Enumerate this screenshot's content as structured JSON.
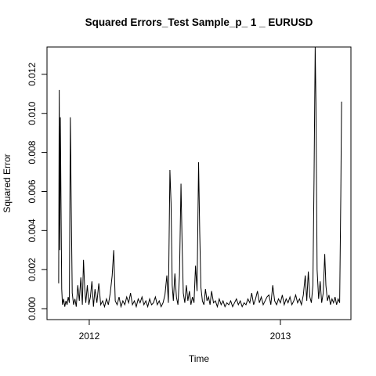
{
  "chart_data": {
    "type": "line",
    "title": "Squared Errors_Test Sample_p_ 1 _ EURUSD",
    "x_label": "Time",
    "y_label": "Squared Error",
    "color": "#000000",
    "xlim": [
      2011.779,
      2013.369
    ],
    "xticks": [
      2012,
      2013
    ],
    "ylim": [
      -0.00056,
      0.0134
    ],
    "yticks": [
      {
        "value": 0,
        "label": "0.000"
      },
      {
        "value": 0.002,
        "label": "0.002"
      },
      {
        "value": 0.004,
        "label": "0.004"
      },
      {
        "value": 0.006,
        "label": "0.006"
      },
      {
        "value": 0.008,
        "label": "0.008"
      },
      {
        "value": 0.01,
        "label": "0.010"
      },
      {
        "value": 0.012,
        "label": "0.012"
      }
    ],
    "x": [
      2011.84,
      2011.843,
      2011.846,
      2011.849,
      2011.852,
      2011.856,
      2011.86,
      2011.866,
      2011.872,
      2011.878,
      2011.884,
      2011.89,
      2011.896,
      2011.901,
      2011.906,
      2011.911,
      2011.918,
      2011.925,
      2011.932,
      2011.94,
      2011.948,
      2011.956,
      2011.964,
      2011.97,
      2011.976,
      2011.982,
      2011.99,
      2011.998,
      2012.006,
      2012.014,
      2012.022,
      2012.03,
      2012.04,
      2012.05,
      2012.06,
      2012.07,
      2012.08,
      2012.09,
      2012.1,
      2012.11,
      2012.12,
      2012.128,
      2012.136,
      2012.146,
      2012.156,
      2012.166,
      2012.176,
      2012.186,
      2012.196,
      2012.206,
      2012.216,
      2012.226,
      2012.236,
      2012.246,
      2012.256,
      2012.266,
      2012.276,
      2012.286,
      2012.296,
      2012.306,
      2012.316,
      2012.326,
      2012.336,
      2012.346,
      2012.356,
      2012.366,
      2012.376,
      2012.386,
      2012.396,
      2012.406,
      2012.414,
      2012.422,
      2012.428,
      2012.434,
      2012.44,
      2012.448,
      2012.456,
      2012.464,
      2012.472,
      2012.48,
      2012.486,
      2012.492,
      2012.5,
      2012.508,
      2012.516,
      2012.524,
      2012.532,
      2012.54,
      2012.548,
      2012.556,
      2012.564,
      2012.572,
      2012.578,
      2012.584,
      2012.592,
      2012.6,
      2012.608,
      2012.616,
      2012.624,
      2012.632,
      2012.64,
      2012.65,
      2012.66,
      2012.67,
      2012.68,
      2012.69,
      2012.7,
      2012.71,
      2012.72,
      2012.73,
      2012.74,
      2012.75,
      2012.76,
      2012.77,
      2012.78,
      2012.79,
      2012.8,
      2012.81,
      2012.82,
      2012.83,
      2012.84,
      2012.85,
      2012.86,
      2012.87,
      2012.88,
      2012.89,
      2012.9,
      2012.91,
      2012.92,
      2012.93,
      2012.94,
      2012.95,
      2012.96,
      2012.97,
      2012.98,
      2012.99,
      2013.0,
      2013.01,
      2013.02,
      2013.03,
      2013.04,
      2013.05,
      2013.06,
      2013.07,
      2013.08,
      2013.09,
      2013.1,
      2013.11,
      2013.12,
      2013.13,
      2013.138,
      2013.146,
      2013.154,
      2013.162,
      2013.17,
      2013.176,
      2013.182,
      2013.186,
      2013.192,
      2013.2,
      2013.208,
      2013.216,
      2013.224,
      2013.232,
      2013.238,
      2013.246,
      2013.254,
      2013.262,
      2013.27,
      2013.278,
      2013.286,
      2013.294,
      2013.302,
      2013.31,
      2013.316,
      2013.32
    ],
    "values": [
      0.0013,
      0.0112,
      0.003,
      0.0098,
      0.0058,
      0.001,
      0.0002,
      0.0005,
      0.0001,
      0.0004,
      0.0002,
      0.0006,
      0.0003,
      0.0098,
      0.0051,
      0.0008,
      0.0002,
      0.0005,
      0.0001,
      0.0012,
      0.0004,
      0.0016,
      0.0002,
      0.0025,
      0.0011,
      0.0003,
      0.0012,
      0.0002,
      0.0006,
      0.0014,
      0.0001,
      0.001,
      0.0003,
      0.0013,
      0.0002,
      0.0004,
      0.0001,
      0.0005,
      0.0002,
      0.0008,
      0.0017,
      0.003,
      0.0004,
      0.0002,
      0.0006,
      0.0001,
      0.0004,
      0.0002,
      0.0006,
      0.0003,
      0.0008,
      0.0002,
      0.0004,
      0.0001,
      0.0005,
      0.0003,
      0.0006,
      0.0002,
      0.0004,
      0.0001,
      0.0005,
      0.0002,
      0.0003,
      0.0006,
      0.0002,
      0.0004,
      0.0001,
      0.0003,
      0.0007,
      0.0017,
      0.0003,
      0.0071,
      0.0054,
      0.0012,
      0.0004,
      0.0018,
      0.0006,
      0.0002,
      0.0017,
      0.0064,
      0.0032,
      0.0008,
      0.0003,
      0.0012,
      0.0004,
      0.0009,
      0.0002,
      0.0006,
      0.0003,
      0.0022,
      0.0009,
      0.0075,
      0.0039,
      0.0011,
      0.0004,
      0.0002,
      0.001,
      0.0004,
      0.0006,
      0.0002,
      0.0009,
      0.0003,
      0.0004,
      0.0001,
      0.0005,
      0.0002,
      0.0004,
      0.0001,
      0.0003,
      0.0002,
      0.0004,
      0.0001,
      0.0003,
      0.0005,
      0.0002,
      0.0004,
      0.0001,
      0.0003,
      0.0002,
      0.0005,
      0.0003,
      0.0008,
      0.0002,
      0.0005,
      0.0009,
      0.0003,
      0.0006,
      0.0002,
      0.0004,
      0.0006,
      0.0007,
      0.0002,
      0.0012,
      0.0004,
      0.0002,
      0.0005,
      0.0003,
      0.0007,
      0.0002,
      0.0005,
      0.0003,
      0.0006,
      0.0002,
      0.0004,
      0.0007,
      0.0003,
      0.0005,
      0.0002,
      0.0007,
      0.0017,
      0.0004,
      0.0019,
      0.0006,
      0.0003,
      0.0012,
      0.0066,
      0.0134,
      0.0105,
      0.002,
      0.0005,
      0.0014,
      0.0003,
      0.0008,
      0.0028,
      0.0012,
      0.0004,
      0.0007,
      0.0002,
      0.0005,
      0.0003,
      0.0006,
      0.0002,
      0.0005,
      0.0003,
      0.0058,
      0.0106
    ]
  }
}
